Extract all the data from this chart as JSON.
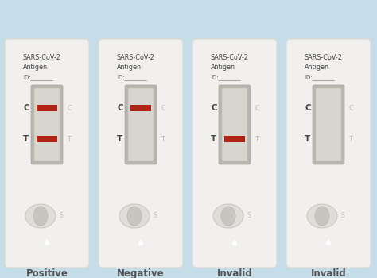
{
  "background_color": "#c5dde8",
  "card_color": "#f2f0ee",
  "card_edge": "#dddad6",
  "window_bg": "#ccc9c4",
  "window_inner": "#d8d4ce",
  "red_line": "#b02515",
  "label_color": "#666666",
  "ct_label_color": "#444444",
  "ct_faint_color": "#bbbbbb",
  "bottom_label_color": "#555555",
  "cards": [
    {
      "label": "Positive",
      "c_line": true,
      "t_line": true
    },
    {
      "label": "Negative",
      "c_line": true,
      "t_line": false
    },
    {
      "label": "Invalid",
      "c_line": false,
      "t_line": true
    },
    {
      "label": "Invalid",
      "c_line": false,
      "t_line": false
    }
  ]
}
